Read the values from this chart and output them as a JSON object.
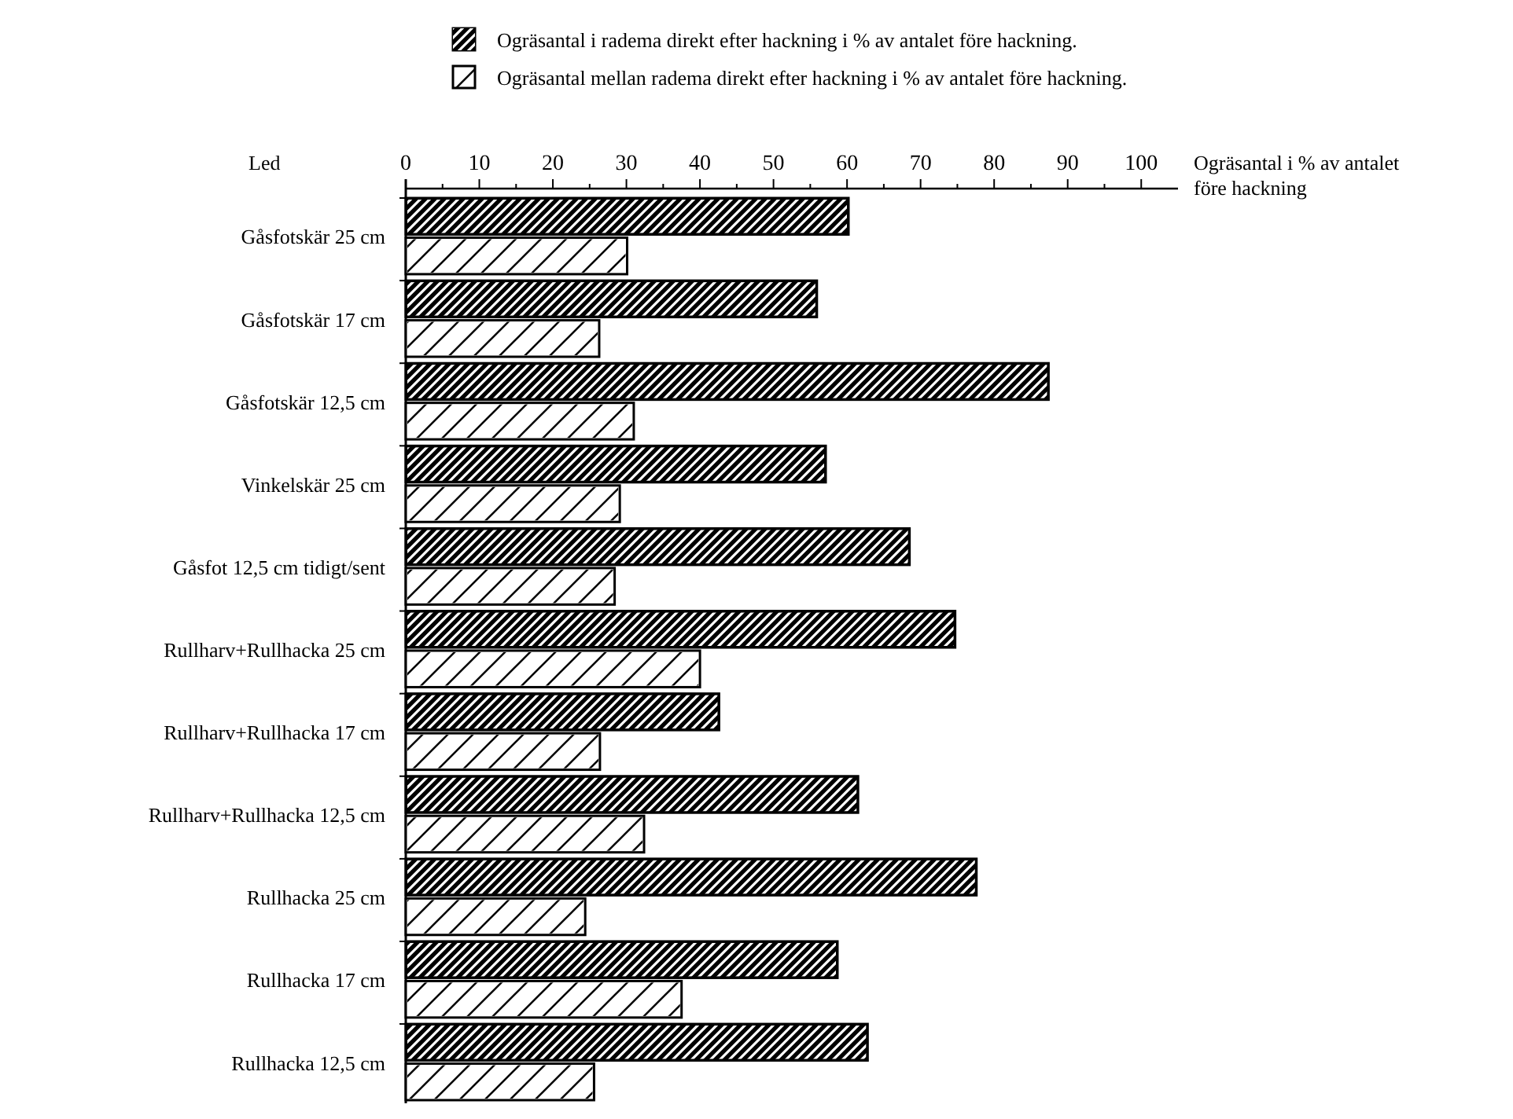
{
  "chart_data": {
    "type": "bar",
    "orientation": "horizontal",
    "ylabel": "Led",
    "xlabel": "Ogräsantal i % av antalet före hackning",
    "categories": [
      "Gåsfotskär 25 cm",
      "Gåsfotskär 17 cm",
      "Gåsfotskär 12,5 cm",
      "Vinkelskär 25 cm",
      "Gåsfot 12,5 cm tidigt/sent",
      "Rullharv+Rullhacka 25 cm",
      "Rullharv+Rullhacka 17 cm",
      "Rullharv+Rullhacka 12,5 cm",
      "Rullhacka 25 cm",
      "Rullhacka 17 cm",
      "Rullhacka 12,5 cm"
    ],
    "series": [
      {
        "name": "Ogräsantal i radema direkt efter hackning i % av antalet före hackning.",
        "color": "#000000",
        "values": [
          60.2,
          55.9,
          87.4,
          57.1,
          68.5,
          74.7,
          42.6,
          61.5,
          77.6,
          58.7,
          62.8
        ]
      },
      {
        "name": "Ogräsantal mellan radema direkt efter hackning i % av antalet före hackning.",
        "color": "#ffffff",
        "values": [
          30.1,
          26.3,
          31.0,
          29.1,
          28.4,
          40.0,
          26.4,
          32.4,
          24.4,
          37.5,
          25.6
        ]
      }
    ],
    "xlim": [
      0,
      105
    ],
    "xticks": [
      0,
      10,
      20,
      30,
      40,
      50,
      60,
      70,
      80,
      90,
      100
    ],
    "legend": "top"
  }
}
